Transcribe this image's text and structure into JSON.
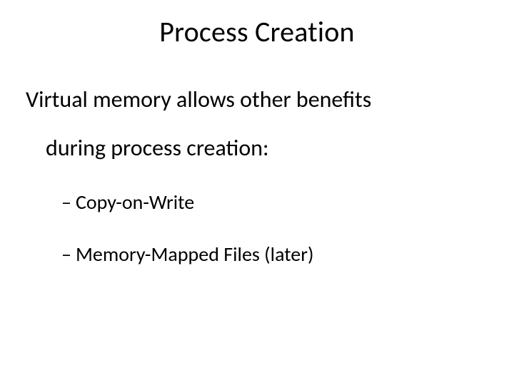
{
  "slide": {
    "title": "Process Creation",
    "body": {
      "line1": "Virtual memory allows other benefits",
      "line2": "during process creation:",
      "items": [
        "Copy-on-Write",
        "Memory-Mapped Files (later)"
      ]
    },
    "style": {
      "background_color": "#ffffff",
      "text_color": "#000000",
      "title_fontsize": 40,
      "body_fontsize": 32,
      "sub_fontsize": 28,
      "font_family": "Calibri",
      "dash_char": "–"
    }
  }
}
